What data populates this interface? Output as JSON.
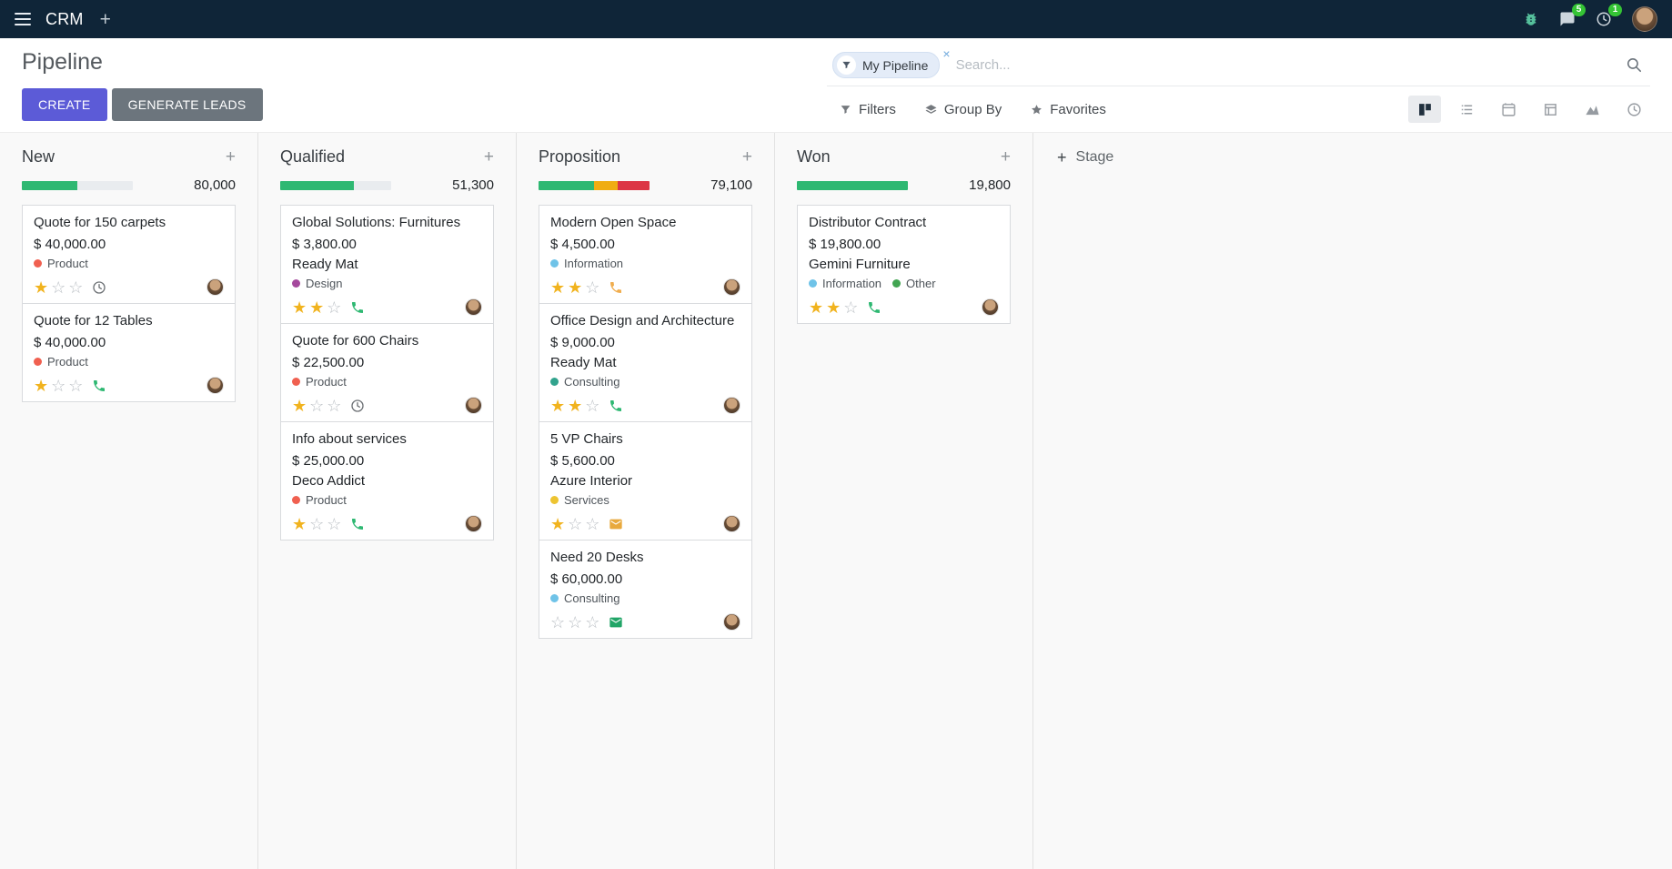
{
  "topbar": {
    "app_name": "CRM",
    "message_badge": "5",
    "activity_badge": "1"
  },
  "control_panel": {
    "title": "Pipeline",
    "create_label": "CREATE",
    "generate_leads_label": "GENERATE LEADS",
    "search": {
      "facet_label": "My Pipeline",
      "remove_label": "×",
      "placeholder": "Search..."
    },
    "filters_label": "Filters",
    "group_by_label": "Group By",
    "favorites_label": "Favorites"
  },
  "colors": {
    "primary": "#5c5bd7",
    "secondary": "#6c757d",
    "success": "#2eb872",
    "warning": "#f0ad12",
    "danger": "#dc3545",
    "star": "#f1b31e",
    "badge": "#35c435",
    "topbar_bg": "#0f2538"
  },
  "board": {
    "add_stage_label": "Stage",
    "columns": [
      {
        "name": "New",
        "total": "80,000",
        "progress": [
          {
            "color": "#2eb872",
            "pct": 50
          }
        ],
        "cards": [
          {
            "title": "Quote for 150 carpets",
            "amount": "$ 40,000.00",
            "tags": [
              {
                "label": "Product",
                "color": "#f06050"
              }
            ],
            "stars": 1,
            "activity": {
              "type": "clock",
              "color": "#6d7175"
            }
          },
          {
            "title": "Quote for 12 Tables",
            "amount": "$ 40,000.00",
            "tags": [
              {
                "label": "Product",
                "color": "#f06050"
              }
            ],
            "stars": 1,
            "activity": {
              "type": "phone",
              "color": "#2eb872"
            }
          }
        ]
      },
      {
        "name": "Qualified",
        "total": "51,300",
        "progress": [
          {
            "color": "#2eb872",
            "pct": 66
          }
        ],
        "cards": [
          {
            "title": "Global Solutions: Furnitures",
            "amount": "$ 3,800.00",
            "partner": "Ready Mat",
            "tags": [
              {
                "label": "Design",
                "color": "#a5499d"
              }
            ],
            "stars": 2,
            "activity": {
              "type": "phone",
              "color": "#2eb872"
            }
          },
          {
            "title": "Quote for 600 Chairs",
            "amount": "$ 22,500.00",
            "tags": [
              {
                "label": "Product",
                "color": "#f06050"
              }
            ],
            "stars": 1,
            "activity": {
              "type": "clock",
              "color": "#6d7175"
            }
          },
          {
            "title": "Info about services",
            "amount": "$ 25,000.00",
            "partner": "Deco Addict",
            "tags": [
              {
                "label": "Product",
                "color": "#f06050"
              }
            ],
            "stars": 1,
            "activity": {
              "type": "phone",
              "color": "#2eb872"
            }
          }
        ]
      },
      {
        "name": "Proposition",
        "total": "79,100",
        "progress": [
          {
            "color": "#2eb872",
            "pct": 50
          },
          {
            "color": "#f0ad12",
            "pct": 21
          },
          {
            "color": "#dc3545",
            "pct": 29
          }
        ],
        "cards": [
          {
            "title": "Modern Open Space",
            "amount": "$ 4,500.00",
            "tags": [
              {
                "label": "Information",
                "color": "#6fc3e8"
              }
            ],
            "stars": 2,
            "activity": {
              "type": "phone",
              "color": "#f0ad4e"
            }
          },
          {
            "title": "Office Design and Architecture",
            "amount": "$ 9,000.00",
            "partner": "Ready Mat",
            "tags": [
              {
                "label": "Consulting",
                "color": "#31a38d"
              }
            ],
            "stars": 2,
            "activity": {
              "type": "phone",
              "color": "#2eb872"
            }
          },
          {
            "title": "5 VP Chairs",
            "amount": "$ 5,600.00",
            "partner": "Azure Interior",
            "tags": [
              {
                "label": "Services",
                "color": "#edc431"
              }
            ],
            "stars": 1,
            "activity": {
              "type": "envelope",
              "color": "#e8a93d"
            }
          },
          {
            "title": "Need 20 Desks",
            "amount": "$ 60,000.00",
            "tags": [
              {
                "label": "Consulting",
                "color": "#6fc3e8"
              }
            ],
            "stars": 0,
            "activity": {
              "type": "envelope",
              "color": "#21a567"
            }
          }
        ]
      },
      {
        "name": "Won",
        "total": "19,800",
        "progress": [
          {
            "color": "#2eb872",
            "pct": 100
          }
        ],
        "cards": [
          {
            "title": "Distributor Contract",
            "amount": "$ 19,800.00",
            "partner": "Gemini Furniture",
            "tags": [
              {
                "label": "Information",
                "color": "#6fc3e8"
              },
              {
                "label": "Other",
                "color": "#42a552"
              }
            ],
            "stars": 2,
            "activity": {
              "type": "phone",
              "color": "#2eb872"
            }
          }
        ]
      }
    ]
  }
}
